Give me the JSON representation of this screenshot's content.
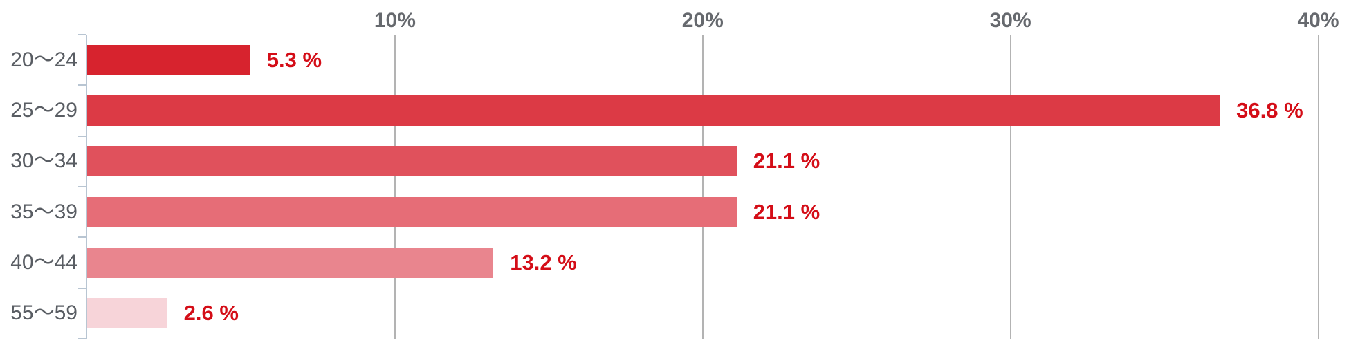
{
  "chart_data": {
    "type": "bar",
    "orientation": "horizontal",
    "title": "",
    "xlabel": "",
    "ylabel": "",
    "categories": [
      "20〜24",
      "25〜29",
      "30〜34",
      "35〜39",
      "40〜44",
      "55〜59"
    ],
    "values": [
      5.3,
      36.8,
      21.1,
      21.1,
      13.2,
      2.6
    ],
    "value_labels": [
      "5.3 %",
      "36.8 %",
      "21.1 %",
      "21.1 %",
      "13.2 %",
      "2.6 %"
    ],
    "x_ticks": [
      {
        "value": 10,
        "label": "10%"
      },
      {
        "value": 20,
        "label": "20%"
      },
      {
        "value": 30,
        "label": "30%"
      },
      {
        "value": 40,
        "label": "40%"
      }
    ],
    "xlim": [
      0,
      41
    ],
    "grid": true,
    "legend": "none",
    "bar_colors": [
      "#d7232e",
      "#dc3a45",
      "#e0515c",
      "#e66d77",
      "#e9858e",
      "#f7d4d9"
    ],
    "value_label_color": "#d40d17",
    "x_tick_label_color": "#66696e",
    "category_label_color": "#595d63",
    "gridline_color": "#b3b3b3",
    "axis_line_color": "#b8c5d2"
  }
}
